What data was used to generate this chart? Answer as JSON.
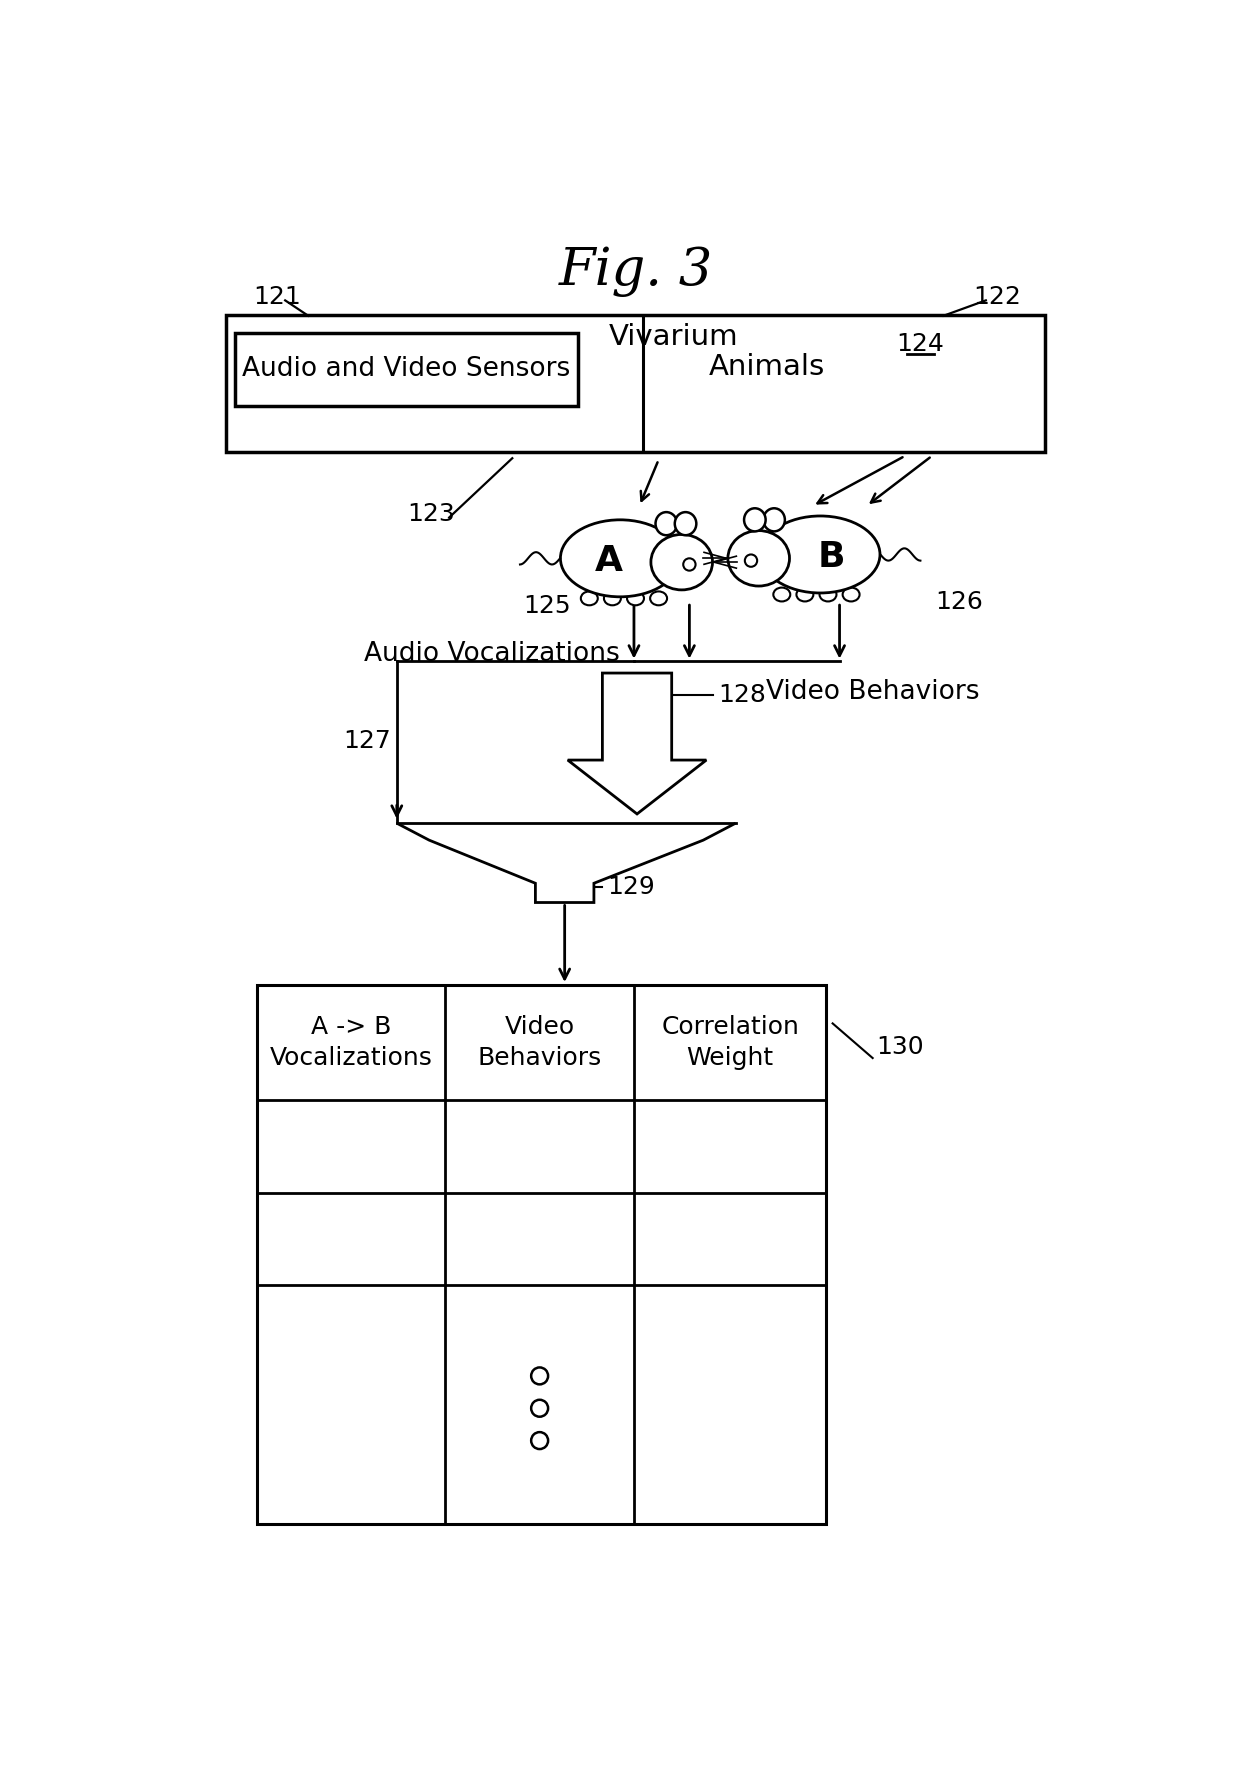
{
  "title": "Fig. 3",
  "bg_color": "#ffffff",
  "text_color": "#000000",
  "labels": {
    "121": "121",
    "122": "122",
    "123": "123",
    "124": "124",
    "125": "125",
    "126": "126",
    "127": "127",
    "128": "128",
    "129": "129",
    "130": "130",
    "vivarium": "Vivarium",
    "sensors": "Audio and Video Sensors",
    "animals": "Animals",
    "audio_voc": "Audio Vocalizations",
    "video_beh": "Video Behaviors",
    "col1": "A -> B\nVocalizations",
    "col2": "Video\nBehaviors",
    "col3": "Correlation\nWeight"
  }
}
